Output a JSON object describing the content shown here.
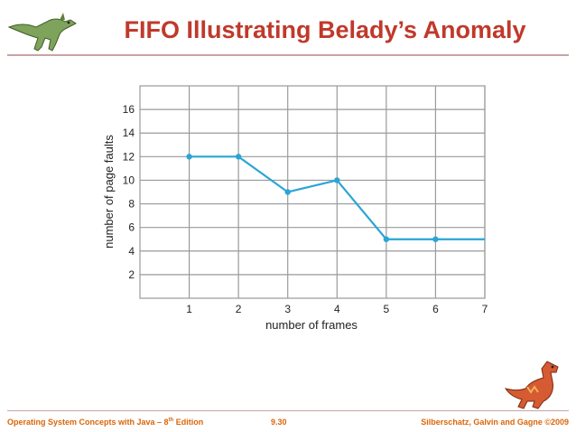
{
  "slide": {
    "title": "FIFO Illustrating Belady’s Anomaly",
    "footer_left_main": "Operating System Concepts with Java – 8",
    "footer_left_sup": "th",
    "footer_left_tail": " Edition",
    "footer_center": "9.30",
    "footer_right": "Silberschatz, Galvin and Gagne ©2009"
  },
  "icons": {
    "top_left": "green-dinosaur-icon",
    "bottom_right": "red-dinosaur-icon"
  },
  "colors": {
    "title": "#c0392b",
    "line": "#2aa5d6",
    "grid": "#9a9a9a",
    "footer": "#d9660a"
  },
  "chart_data": {
    "type": "line",
    "title": "",
    "xlabel": "number of frames",
    "ylabel": "number of page faults",
    "x": [
      1,
      2,
      3,
      4,
      5,
      6,
      7
    ],
    "y": [
      12,
      12,
      9,
      10,
      5,
      5,
      5
    ],
    "markers": [
      true,
      true,
      true,
      true,
      true,
      true,
      false
    ],
    "xlim": [
      0,
      7
    ],
    "ylim": [
      0,
      18
    ],
    "x_ticks": [
      1,
      2,
      3,
      4,
      5,
      6,
      7
    ],
    "y_ticks": [
      2,
      4,
      6,
      8,
      10,
      12,
      14,
      16
    ],
    "grid": true
  }
}
